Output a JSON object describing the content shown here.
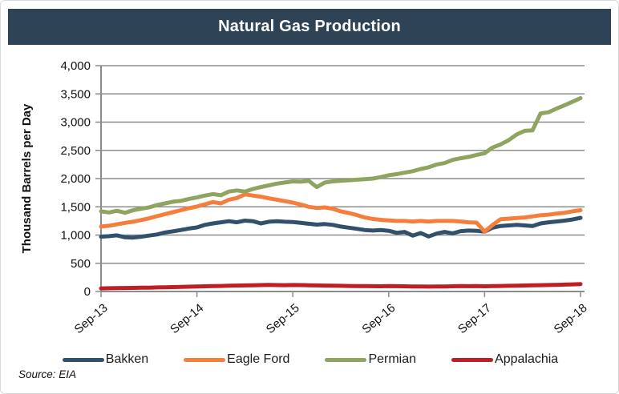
{
  "header": {
    "title": "Natural Gas Production",
    "bg_color": "#2E4456",
    "text_color": "#FFFFFF"
  },
  "source": {
    "label": "Source: EIA"
  },
  "chart_data": {
    "type": "line",
    "title": "Natural Gas Production",
    "xlabel": "",
    "ylabel": "Thousand Barrels per Day",
    "ylim": [
      0,
      4000
    ],
    "y_ticks": [
      0,
      500,
      1000,
      1500,
      2000,
      2500,
      3000,
      3500,
      4000
    ],
    "x_tick_labels": [
      "Sep-13",
      "Sep-14",
      "Sep-15",
      "Sep-16",
      "Sep-17",
      "Sep-18"
    ],
    "x_tick_indices": [
      0,
      12,
      24,
      36,
      48,
      60
    ],
    "x_frequency": "monthly",
    "points_per_series": 61,
    "grid": true,
    "grid_color": "#8C8C8C",
    "axis_color": "#8C8C8C",
    "legend_position": "bottom",
    "series": [
      {
        "name": "Bakken",
        "color": "#31506B",
        "values": [
          970,
          980,
          995,
          960,
          955,
          970,
          990,
          1010,
          1045,
          1065,
          1090,
          1115,
          1135,
          1180,
          1205,
          1225,
          1245,
          1225,
          1255,
          1245,
          1205,
          1235,
          1245,
          1235,
          1230,
          1215,
          1200,
          1185,
          1195,
          1180,
          1150,
          1130,
          1110,
          1090,
          1080,
          1090,
          1075,
          1040,
          1055,
          990,
          1035,
          975,
          1025,
          1055,
          1030,
          1070,
          1080,
          1075,
          1060,
          1130,
          1160,
          1170,
          1180,
          1170,
          1160,
          1205,
          1225,
          1240,
          1255,
          1275,
          1305
        ]
      },
      {
        "name": "Eagle Ford",
        "color": "#F57E3D",
        "values": [
          1150,
          1165,
          1190,
          1215,
          1235,
          1265,
          1295,
          1335,
          1370,
          1405,
          1440,
          1475,
          1505,
          1545,
          1585,
          1560,
          1625,
          1655,
          1720,
          1700,
          1680,
          1650,
          1625,
          1600,
          1575,
          1540,
          1500,
          1480,
          1490,
          1465,
          1420,
          1390,
          1355,
          1310,
          1285,
          1270,
          1260,
          1250,
          1250,
          1240,
          1250,
          1240,
          1250,
          1250,
          1250,
          1240,
          1225,
          1220,
          1060,
          1180,
          1280,
          1290,
          1300,
          1310,
          1330,
          1350,
          1360,
          1380,
          1395,
          1420,
          1440
        ]
      },
      {
        "name": "Permian",
        "color": "#8FA45F",
        "values": [
          1420,
          1400,
          1430,
          1395,
          1440,
          1465,
          1490,
          1530,
          1560,
          1590,
          1605,
          1640,
          1665,
          1700,
          1725,
          1705,
          1770,
          1790,
          1770,
          1815,
          1850,
          1880,
          1910,
          1930,
          1950,
          1945,
          1960,
          1850,
          1930,
          1950,
          1960,
          1970,
          1980,
          1990,
          2000,
          2025,
          2060,
          2080,
          2105,
          2130,
          2170,
          2200,
          2250,
          2275,
          2330,
          2360,
          2385,
          2420,
          2450,
          2550,
          2605,
          2680,
          2780,
          2845,
          2855,
          3155,
          3175,
          3240,
          3300,
          3360,
          3425
        ]
      },
      {
        "name": "Appalachia",
        "color": "#C01E25",
        "values": [
          55,
          58,
          60,
          62,
          64,
          66,
          68,
          72,
          75,
          78,
          82,
          85,
          88,
          92,
          95,
          98,
          102,
          105,
          108,
          110,
          113,
          116,
          114,
          112,
          115,
          113,
          110,
          108,
          105,
          103,
          100,
          98,
          97,
          95,
          93,
          92,
          95,
          93,
          92,
          90,
          88,
          87,
          88,
          90,
          92,
          95,
          93,
          95,
          92,
          95,
          98,
          101,
          104,
          106,
          109,
          112,
          115,
          118,
          122,
          126,
          132
        ]
      }
    ]
  }
}
